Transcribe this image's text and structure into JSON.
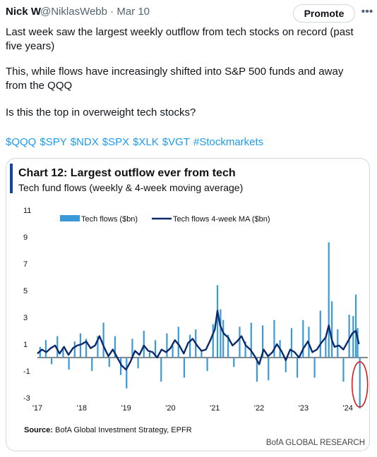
{
  "tweet": {
    "author_name": "Nick W",
    "author_handle": "@NiklasWebb",
    "date": "Mar 10",
    "promote_label": "Promote",
    "more_icon": "more-horizontal-icon",
    "lines": [
      "Last week saw the largest weekly outflow from tech stocks on record (past",
      "five years)",
      "This, while flows have increasingly shifted into S&P 500 funds and away",
      "from the QQQ",
      "Is this the top in overweight tech stocks?"
    ],
    "hashtags": [
      "$QQQ",
      "$SPY",
      "$NDX",
      "$SPX",
      "$XLK",
      "$VGT",
      "#Stockmarkets"
    ],
    "link_color": "#1d9bf0"
  },
  "chart_data": {
    "type": "bar",
    "title": "Chart 12: Largest outflow ever from tech",
    "subtitle": "Tech fund flows (weekly & 4-week moving average)",
    "y_ticks": [
      "11",
      "9",
      "7",
      "5",
      "3",
      "1",
      "-1",
      "-3"
    ],
    "x_ticks": [
      "'17",
      "'18",
      "'19",
      "'20",
      "'21",
      "'22",
      "'23",
      "'24"
    ],
    "ylim": [
      -3,
      11
    ],
    "xlim": [
      2017.0,
      2024.45
    ],
    "legend": [
      "Tech flows ($bn)",
      "Tech flows 4-week MA ($bn)"
    ],
    "legend_position": "top",
    "series": [
      {
        "name": "Tech flows ($bn)",
        "type": "bar",
        "color": "#3a9ad9",
        "x": [
          2017.06,
          2017.19,
          2017.32,
          2017.45,
          2017.58,
          2017.71,
          2017.84,
          2017.97,
          2018.1,
          2018.23,
          2018.36,
          2018.49,
          2018.62,
          2018.75,
          2018.88,
          2019.01,
          2019.14,
          2019.27,
          2019.4,
          2019.53,
          2019.66,
          2019.79,
          2019.92,
          2020.05,
          2020.18,
          2020.31,
          2020.44,
          2020.57,
          2020.7,
          2020.83,
          2020.96,
          2021.06,
          2021.13,
          2021.19,
          2021.3,
          2021.43,
          2021.56,
          2021.69,
          2021.82,
          2021.95,
          2022.08,
          2022.21,
          2022.34,
          2022.47,
          2022.6,
          2022.73,
          2022.86,
          2022.99,
          2023.12,
          2023.25,
          2023.38,
          2023.5,
          2023.57,
          2023.64,
          2023.77,
          2023.9,
          2024.03,
          2024.12,
          2024.18,
          2024.22,
          2024.27
        ],
        "values": [
          0.8,
          1.3,
          -0.5,
          1.6,
          0.6,
          -0.9,
          1.2,
          1.8,
          1.4,
          -1.0,
          1.6,
          2.6,
          -0.7,
          1.6,
          -1.3,
          -2.3,
          1.4,
          -0.8,
          2.0,
          0.4,
          1.3,
          -1.8,
          1.8,
          0.9,
          2.3,
          -1.5,
          1.7,
          2.1,
          0.5,
          -1.0,
          2.5,
          5.4,
          3.6,
          2.8,
          1.7,
          -0.7,
          2.3,
          1.2,
          2.6,
          -1.8,
          2.4,
          -1.7,
          2.8,
          1.3,
          -1.1,
          2.2,
          -1.5,
          2.8,
          2.3,
          -1.5,
          3.5,
          1.5,
          8.6,
          4.2,
          2.1,
          -1.8,
          3.2,
          3.1,
          4.7,
          2.2,
          -3.8
        ]
      },
      {
        "name": "Tech flows 4-week MA ($bn)",
        "type": "line",
        "color": "#0b2a6b",
        "x": [
          2017.0,
          2017.1,
          2017.2,
          2017.3,
          2017.4,
          2017.5,
          2017.6,
          2017.7,
          2017.8,
          2017.9,
          2018.0,
          2018.1,
          2018.2,
          2018.3,
          2018.4,
          2018.5,
          2018.6,
          2018.7,
          2018.8,
          2018.9,
          2019.0,
          2019.1,
          2019.2,
          2019.3,
          2019.4,
          2019.5,
          2019.6,
          2019.7,
          2019.8,
          2019.9,
          2020.0,
          2020.1,
          2020.2,
          2020.3,
          2020.4,
          2020.5,
          2020.6,
          2020.7,
          2020.8,
          2020.9,
          2021.0,
          2021.06,
          2021.12,
          2021.2,
          2021.3,
          2021.4,
          2021.5,
          2021.6,
          2021.7,
          2021.8,
          2021.9,
          2022.0,
          2022.1,
          2022.2,
          2022.3,
          2022.4,
          2022.5,
          2022.6,
          2022.7,
          2022.8,
          2022.9,
          2023.0,
          2023.1,
          2023.2,
          2023.3,
          2023.4,
          2023.5,
          2023.57,
          2023.64,
          2023.7,
          2023.8,
          2023.9,
          2024.0,
          2024.1,
          2024.18,
          2024.25
        ],
        "values": [
          0.3,
          0.6,
          0.4,
          0.7,
          0.9,
          0.3,
          0.8,
          0.2,
          0.7,
          0.9,
          1.0,
          1.2,
          0.7,
          0.9,
          1.6,
          0.8,
          0.1,
          0.6,
          0.0,
          -0.6,
          -0.9,
          -0.3,
          0.5,
          0.2,
          0.9,
          0.5,
          0.4,
          0.0,
          0.6,
          0.4,
          0.7,
          1.3,
          0.9,
          0.3,
          1.1,
          1.4,
          0.9,
          0.5,
          0.6,
          1.3,
          2.1,
          3.5,
          2.4,
          1.8,
          1.5,
          0.9,
          1.2,
          1.6,
          0.9,
          0.6,
          0.1,
          -0.5,
          0.6,
          0.1,
          0.4,
          1.0,
          0.5,
          -0.2,
          0.6,
          0.4,
          0.0,
          0.7,
          1.2,
          0.4,
          0.6,
          1.1,
          1.5,
          2.4,
          1.3,
          0.8,
          0.9,
          0.6,
          1.2,
          1.8,
          2.0,
          1.0
        ]
      }
    ],
    "annotation": "red-circle-highlight",
    "annotation_color": "#d7191c",
    "source": "Source: BofA Global Investment Strategy, EPFR",
    "source_bold": "Source:",
    "source_rest": " BofA Global Investment Strategy, EPFR",
    "branding": "BofA GLOBAL RESEARCH",
    "accent_bar_color": "#1446a0"
  }
}
